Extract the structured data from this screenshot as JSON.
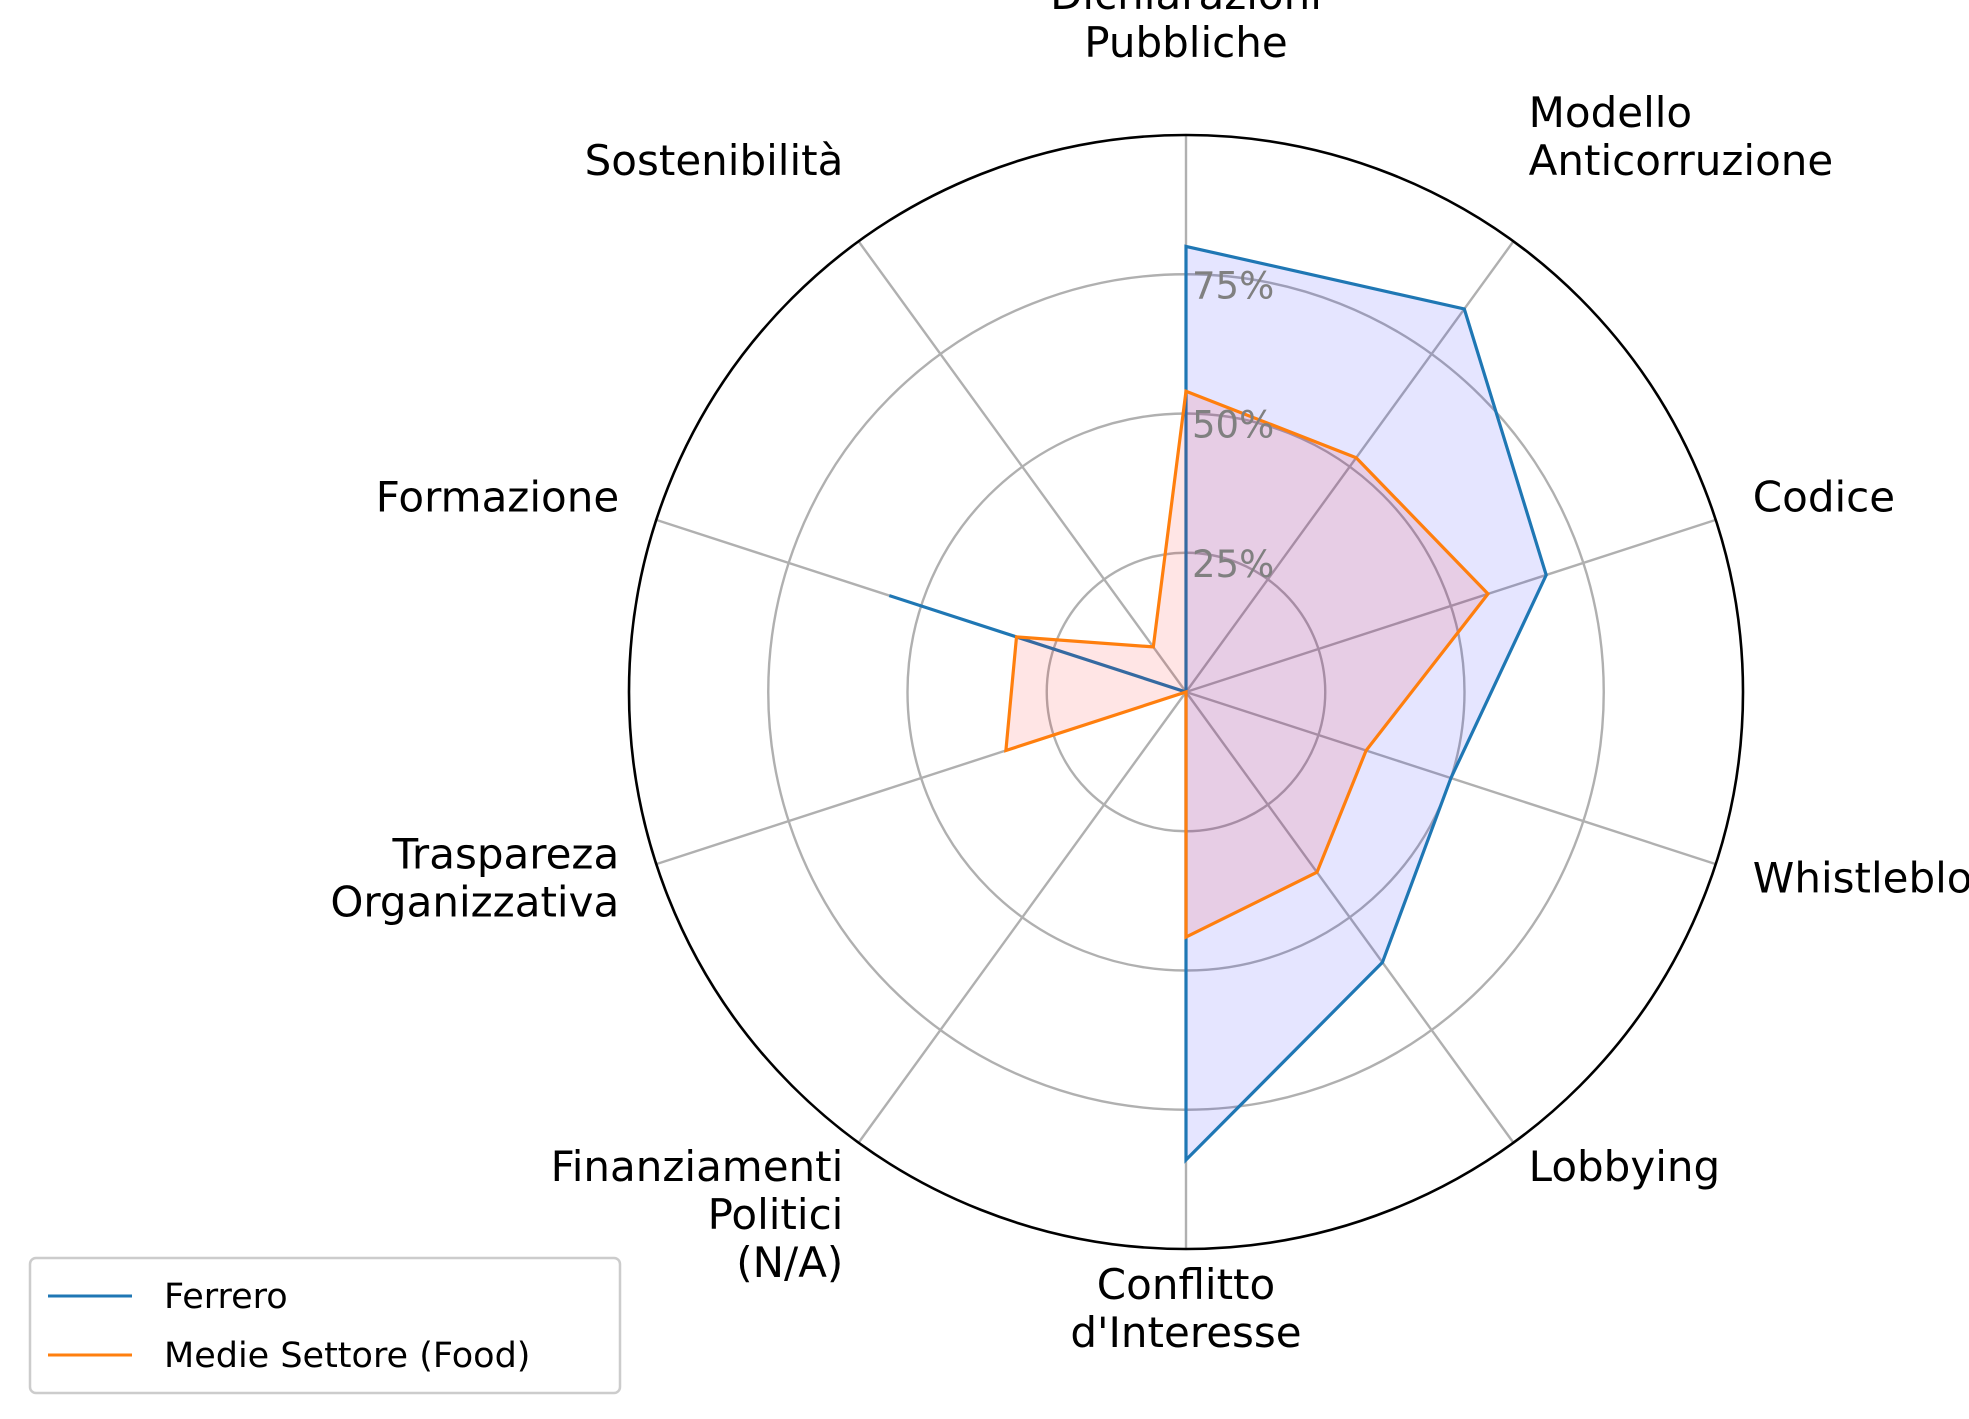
{
  "chart_data": {
    "type": "radar",
    "axes": [
      "Dichiarazioni\nPubbliche",
      "Modello\nAnticorruzione",
      "Codice",
      "Whistleblowing",
      "Lobbying",
      "Conflitto\nd'Interesse",
      "Finanziamenti\nPolitici\n(N/A)",
      "Traspareza\nOrganizzativa",
      "Formazione",
      "Sostenibilità"
    ],
    "rlim": [
      0,
      100
    ],
    "rticks": [
      25,
      50,
      75
    ],
    "rtick_labels": [
      "25%",
      "50%",
      "75%"
    ],
    "series": [
      {
        "name": "Ferrero",
        "color": "#1f77b4",
        "fill": "#0000ff",
        "fill_opacity": 0.1,
        "values": [
          80,
          85,
          68,
          50,
          60,
          84,
          0,
          0,
          56,
          0
        ]
      },
      {
        "name": "Medie Settore (Food)",
        "color": "#ff7f0e",
        "fill": "#ff0000",
        "fill_opacity": 0.1,
        "values": [
          54,
          52,
          57,
          34,
          40,
          44,
          0,
          34,
          32,
          10
        ]
      }
    ],
    "grid": true,
    "legend_position": "lower-left"
  }
}
